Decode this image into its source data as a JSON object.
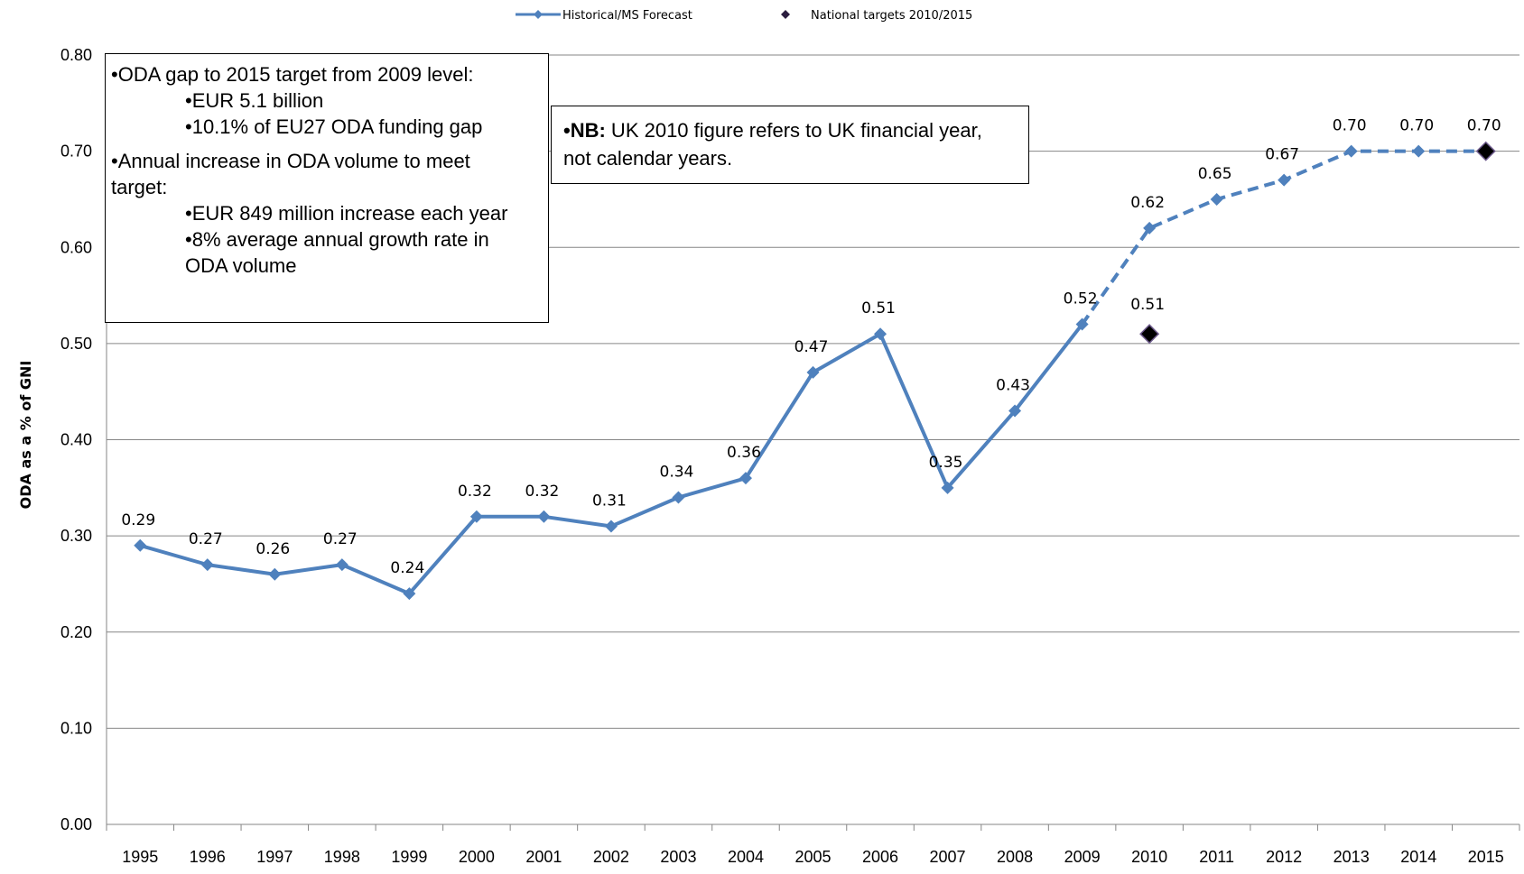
{
  "chart_data": {
    "type": "line",
    "ylabel": "ODA as a % of GNI",
    "xlabel": "",
    "ylim": [
      0,
      0.8
    ],
    "ytick_labels": [
      "0.00",
      "0.10",
      "0.20",
      "0.30",
      "0.40",
      "0.50",
      "0.60",
      "0.70",
      "0.80"
    ],
    "categories": [
      "1995",
      "1996",
      "1997",
      "1998",
      "1999",
      "2000",
      "2001",
      "2002",
      "2003",
      "2004",
      "2005",
      "2006",
      "2007",
      "2008",
      "2009",
      "2010",
      "2011",
      "2012",
      "2013",
      "2014",
      "2015"
    ],
    "grid": true,
    "legend_position": "top-center",
    "series": [
      {
        "name": "Historical/MS Forecast",
        "color": "#4F81BD",
        "marker": "diamond",
        "values": [
          0.29,
          0.27,
          0.26,
          0.27,
          0.24,
          0.32,
          0.32,
          0.31,
          0.34,
          0.36,
          0.47,
          0.51,
          0.35,
          0.43,
          0.52,
          0.62,
          0.65,
          0.67,
          0.7,
          0.7,
          0.7
        ],
        "labels": [
          "0.29",
          "0.27",
          "0.26",
          "0.27",
          "0.24",
          "0.32",
          "0.32",
          "0.31",
          "0.34",
          "0.36",
          "0.47",
          "0.51",
          "0.35",
          "0.43",
          "0.52",
          "0.62",
          "0.65",
          "0.67",
          "0.70",
          "0.70",
          "0.70"
        ],
        "solid_until": "2009",
        "dashed_from": "2009"
      },
      {
        "name": "National targets 2010/2015",
        "color": "#000000",
        "marker": "diamond",
        "points": [
          {
            "x": "2010",
            "y": 0.51,
            "label": "0.51"
          },
          {
            "x": "2015",
            "y": 0.7,
            "label": ""
          }
        ]
      }
    ]
  },
  "annotations": {
    "gap_box": {
      "line1": "•ODA gap to 2015 target from 2009 level:",
      "line2": "•EUR 5.1 billion",
      "line3": "•10.1% of EU27 ODA funding gap",
      "line4": "•Annual increase in ODA volume to meet",
      "line5": "target:",
      "line6": "•EUR 849 million increase each year",
      "line7": "•8% average annual growth rate in",
      "line8": "ODA volume"
    },
    "nb_box": {
      "bold": "•NB:",
      "line1_rest": " UK 2010 figure refers to UK financial year,",
      "line2": "not calendar years."
    }
  }
}
